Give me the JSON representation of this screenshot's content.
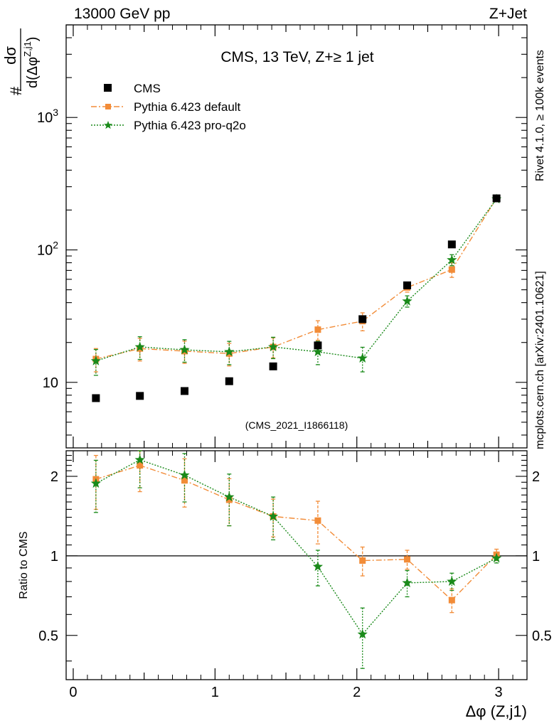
{
  "header": {
    "left": "13000 GeV pp",
    "right": "Z+Jet"
  },
  "side": {
    "rivet": "Rivet 4.1.0, ≥ 100k events",
    "mcplots": "mcplots.cern.ch [arXiv:2401.10621]"
  },
  "colors": {
    "cms": "#000000",
    "pythia_default": "#f28c38",
    "pythia_proq2o": "#1a8a1a",
    "watermark": "#999999"
  },
  "chart_data": {
    "type": "scatter",
    "title": "CMS, 13 TeV, Z+≥ 1 jet",
    "watermark": "(CMS_2021_I1866118)",
    "xlabel": "Δφ (Z,j1)",
    "ylabel_main": {
      "hash": "#",
      "num": "dσ",
      "den": "d(Δφ",
      "sup": "Z,j1",
      "close": ")"
    },
    "ylabel_ratio": "Ratio to CMS",
    "xlim": [
      -0.05,
      3.2
    ],
    "main": {
      "yscale": "log",
      "ylim": [
        3.2,
        5000
      ],
      "yticks": [
        {
          "value": 10,
          "base": "10",
          "exp": ""
        },
        {
          "value": 100,
          "base": "10",
          "exp": "2"
        },
        {
          "value": 1000,
          "base": "10",
          "exp": "3"
        }
      ]
    },
    "ratio": {
      "yscale": "log",
      "ylim": [
        0.34,
        2.5
      ],
      "yticks": [
        {
          "value": 0.5,
          "label": "0.5"
        },
        {
          "value": 1,
          "label": "1"
        },
        {
          "value": 2,
          "label": "2"
        }
      ]
    },
    "xticks": [
      {
        "value": 0,
        "label": "0"
      },
      {
        "value": 1,
        "label": "1"
      },
      {
        "value": 2,
        "label": "2"
      },
      {
        "value": 3,
        "label": "3"
      }
    ],
    "x": [
      0.16,
      0.47,
      0.785,
      1.1,
      1.41,
      1.725,
      2.04,
      2.355,
      2.67,
      2.985
    ],
    "series": [
      {
        "name": "CMS",
        "marker": "square",
        "values": [
          7.6,
          7.9,
          8.6,
          10.2,
          13.2,
          19,
          30,
          54,
          110,
          245
        ]
      },
      {
        "name": "Pythia 6.423 default",
        "marker": "square",
        "linestyle": "dashdot",
        "values": [
          15,
          18,
          17.2,
          16.5,
          18.5,
          25,
          29,
          52,
          71,
          245
        ],
        "errors": [
          3.0,
          3.5,
          3.3,
          3.2,
          3.2,
          4.2,
          4.5,
          4,
          9,
          10
        ],
        "ratio": [
          1.95,
          2.2,
          1.93,
          1.63,
          1.41,
          1.36,
          0.96,
          0.97,
          0.68,
          1.01
        ],
        "ratio_errors": [
          0.45,
          0.45,
          0.4,
          0.33,
          0.23,
          0.25,
          0.12,
          0.08,
          0.07,
          0.05
        ]
      },
      {
        "name": "Pythia 6.423 pro-q2o",
        "marker": "star",
        "linestyle": "dotted",
        "values": [
          14.5,
          18.5,
          17.6,
          17,
          18.5,
          17,
          15.2,
          41,
          84,
          242
        ],
        "errors": [
          3.2,
          3.6,
          3.4,
          3.4,
          3.4,
          3.4,
          3.2,
          4,
          8,
          9
        ],
        "ratio": [
          1.88,
          2.31,
          2.02,
          1.67,
          1.41,
          0.91,
          0.505,
          0.79,
          0.8,
          0.98
        ],
        "ratio_errors": [
          0.42,
          0.5,
          0.42,
          0.37,
          0.26,
          0.14,
          0.13,
          0.09,
          0.06,
          0.04
        ]
      }
    ]
  }
}
